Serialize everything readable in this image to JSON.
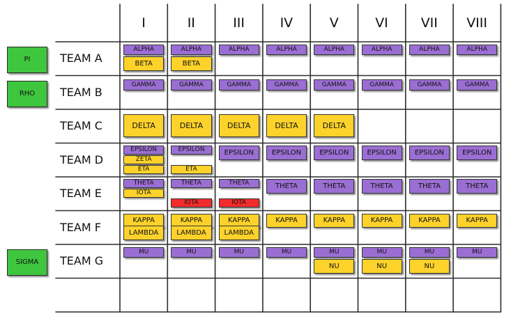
{
  "columns": [
    "I",
    "II",
    "III",
    "IV",
    "V",
    "VI",
    "VII",
    "VIII"
  ],
  "colors": {
    "purple": "#9b6ed3",
    "yellow": "#fdd22b",
    "red": "#f22b2b",
    "green": "#3ec63e"
  },
  "rows": [
    {
      "team": "TEAM A",
      "tag": "PI",
      "items": [
        {
          "label": "ALPHA",
          "color": "purple",
          "cols": [
            1,
            2,
            3,
            4,
            5,
            6,
            7,
            8
          ]
        },
        {
          "label": "BETA",
          "color": "yellow",
          "cols": [
            1,
            2
          ]
        }
      ]
    },
    {
      "team": "TEAM B",
      "tag": "RHO",
      "items": [
        {
          "label": "GAMMA",
          "color": "purple",
          "cols": [
            1,
            2,
            3,
            4,
            5,
            6,
            7,
            8
          ]
        }
      ]
    },
    {
      "team": "TEAM C",
      "tag": "",
      "items": [
        {
          "label": "DELTA",
          "color": "yellow",
          "cols": [
            1,
            2,
            3,
            4,
            5
          ]
        }
      ]
    },
    {
      "team": "TEAM D",
      "tag": "",
      "items": [
        {
          "label": "EPSILON",
          "color": "purple",
          "cols": [
            1,
            2,
            3,
            4,
            5,
            6,
            7,
            8
          ]
        },
        {
          "label": "ZETA",
          "color": "yellow",
          "cols": [
            1
          ]
        },
        {
          "label": "ETA",
          "color": "yellow",
          "cols": [
            1,
            2
          ]
        }
      ]
    },
    {
      "team": "TEAM E",
      "tag": "",
      "items": [
        {
          "label": "THETA",
          "color": "purple",
          "cols": [
            1,
            2,
            3,
            4,
            5,
            6,
            7,
            8
          ]
        },
        {
          "label": "IOTA",
          "color": "yellow",
          "cols": [
            1
          ]
        },
        {
          "label": "IOTA",
          "color": "red",
          "cols": [
            2,
            3
          ]
        }
      ]
    },
    {
      "team": "TEAM F",
      "tag": "",
      "items": [
        {
          "label": "KAPPA",
          "color": "yellow",
          "cols": [
            1,
            2,
            3,
            4,
            5,
            6,
            7,
            8
          ]
        },
        {
          "label": "LAMBDA",
          "color": "yellow",
          "cols": [
            1,
            2,
            3
          ]
        }
      ]
    },
    {
      "team": "TEAM G",
      "tag": "SIGMA",
      "items": [
        {
          "label": "MU",
          "color": "purple",
          "cols": [
            1,
            2,
            3,
            4,
            5,
            6,
            7,
            8
          ]
        },
        {
          "label": "NU",
          "color": "yellow",
          "cols": [
            5,
            6,
            7
          ]
        }
      ]
    },
    {
      "team": "",
      "tag": "",
      "items": []
    }
  ]
}
